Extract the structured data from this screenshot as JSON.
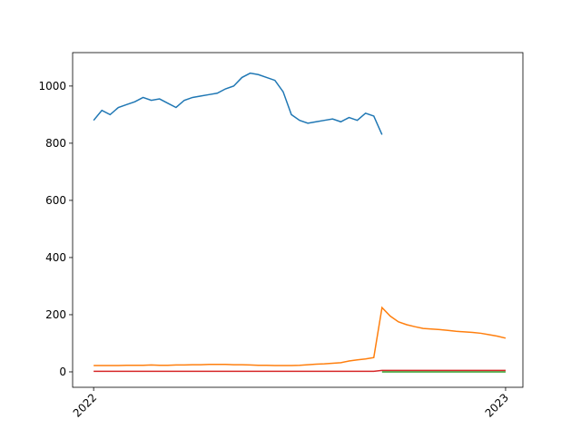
{
  "chart_data": {
    "type": "line",
    "x": [
      2022.0,
      2022.02,
      2022.04,
      2022.06,
      2022.08,
      2022.1,
      2022.12,
      2022.14,
      2022.16,
      2022.18,
      2022.2,
      2022.22,
      2022.24,
      2022.26,
      2022.28,
      2022.3,
      2022.32,
      2022.34,
      2022.36,
      2022.38,
      2022.4,
      2022.42,
      2022.44,
      2022.46,
      2022.48,
      2022.5,
      2022.52,
      2022.54,
      2022.56,
      2022.58,
      2022.6,
      2022.62,
      2022.64,
      2022.66,
      2022.68,
      2022.7,
      2022.72,
      2022.74,
      2022.76,
      2022.78,
      2022.8,
      2022.82,
      2022.84,
      2022.86,
      2022.88,
      2022.9,
      2022.92,
      2022.94,
      2022.96,
      2022.98,
      2023.0
    ],
    "series": [
      {
        "color": "#1f77b4",
        "values": [
          880,
          915,
          900,
          925,
          935,
          945,
          960,
          950,
          955,
          940,
          925,
          950,
          960,
          965,
          970,
          975,
          990,
          1000,
          1030,
          1045,
          1040,
          1030,
          1020,
          980,
          900,
          880,
          870,
          875,
          880,
          885,
          875,
          890,
          880,
          905,
          895,
          830,
          null,
          null,
          null,
          null,
          null,
          null,
          null,
          null,
          null,
          null,
          null,
          null,
          null,
          null,
          null
        ]
      },
      {
        "color": "#ff7f0e",
        "values": [
          22,
          22,
          22,
          22,
          23,
          23,
          23,
          24,
          23,
          23,
          24,
          24,
          25,
          25,
          26,
          26,
          26,
          25,
          25,
          24,
          23,
          23,
          22,
          22,
          22,
          23,
          25,
          27,
          28,
          30,
          32,
          38,
          42,
          45,
          50,
          225,
          195,
          175,
          165,
          158,
          152,
          150,
          148,
          145,
          142,
          140,
          138,
          135,
          130,
          125,
          118
        ]
      },
      {
        "color": "#2ca02c",
        "values": [
          null,
          null,
          null,
          null,
          null,
          null,
          null,
          null,
          null,
          null,
          null,
          null,
          null,
          null,
          null,
          null,
          null,
          null,
          null,
          null,
          null,
          null,
          null,
          null,
          null,
          null,
          null,
          null,
          null,
          null,
          null,
          null,
          null,
          null,
          null,
          0,
          0,
          0,
          0,
          0,
          0,
          0,
          0,
          0,
          0,
          0,
          0,
          0,
          0,
          0,
          0
        ]
      },
      {
        "color": "#d62728",
        "values": [
          2,
          2,
          2,
          2,
          2,
          2,
          2,
          2,
          2,
          2,
          2,
          2,
          2,
          2,
          2,
          2,
          2,
          2,
          2,
          2,
          2,
          2,
          2,
          2,
          2,
          2,
          2,
          2,
          2,
          2,
          2,
          2,
          2,
          2,
          2,
          5,
          5,
          5,
          5,
          5,
          5,
          5,
          5,
          5,
          5,
          5,
          5,
          5,
          5,
          5,
          5
        ]
      }
    ],
    "xlim": [
      2021.949,
      2023.042
    ],
    "xticks": [
      2022,
      2023
    ],
    "ylim": [
      -54,
      1117
    ],
    "yticks": [
      0,
      200,
      400,
      600,
      800,
      1000
    ]
  }
}
